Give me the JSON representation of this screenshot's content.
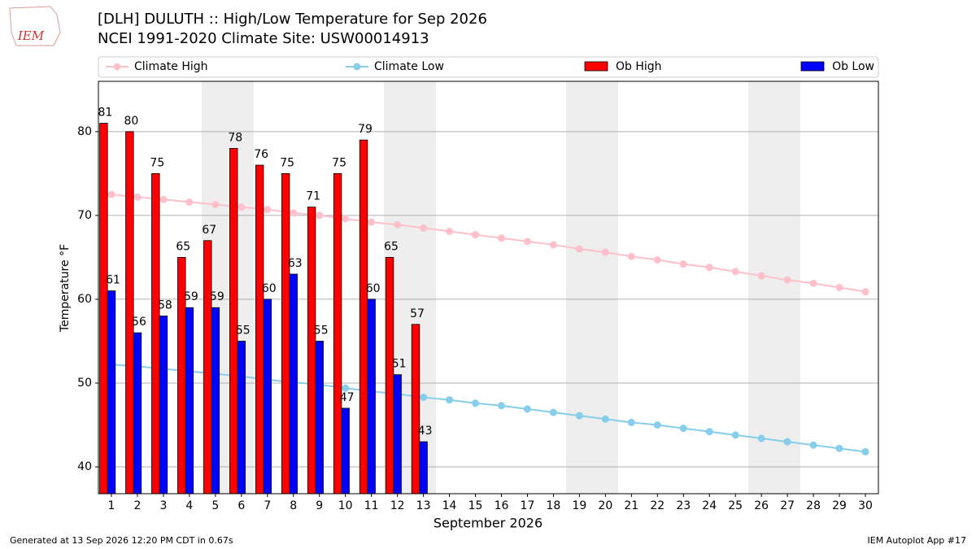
{
  "chart_data": {
    "type": "bar_line",
    "title": "[DLH] DULUTH :: High/Low Temperature for Sep 2026",
    "subtitle": "NCEI 1991-2020 Climate Site: USW00014913",
    "xlabel": "September 2026",
    "ylabel": "Temperature °F",
    "logo": "IEM",
    "footer_left": "Generated at 13 Sep 2026 12:20 PM CDT in 0.67s",
    "footer_right": "IEM Autoplot App #17",
    "x": [
      1,
      2,
      3,
      4,
      5,
      6,
      7,
      8,
      9,
      10,
      11,
      12,
      13,
      14,
      15,
      16,
      17,
      18,
      19,
      20,
      21,
      22,
      23,
      24,
      25,
      26,
      27,
      28,
      29,
      30
    ],
    "xlim": [
      0.5,
      30.5
    ],
    "xticks": [
      1,
      2,
      3,
      4,
      5,
      6,
      7,
      8,
      9,
      10,
      11,
      12,
      13,
      14,
      15,
      16,
      17,
      18,
      19,
      20,
      21,
      22,
      23,
      24,
      25,
      26,
      27,
      28,
      29,
      30
    ],
    "ylim": [
      36.8,
      86
    ],
    "yticks": [
      40,
      50,
      60,
      70,
      80
    ],
    "grid": true,
    "series": [
      {
        "name": "Climate High",
        "kind": "line",
        "color": "#ffc0cb",
        "values": [
          72.5,
          72.2,
          71.9,
          71.6,
          71.3,
          71.0,
          70.7,
          70.3,
          70.0,
          69.6,
          69.2,
          68.9,
          68.5,
          68.1,
          67.7,
          67.3,
          66.9,
          66.5,
          66.0,
          65.6,
          65.1,
          64.7,
          64.2,
          63.8,
          63.3,
          62.8,
          62.3,
          61.9,
          61.4,
          60.9
        ]
      },
      {
        "name": "Climate Low",
        "kind": "line",
        "color": "#87ceeb",
        "values": [
          52.2,
          52.0,
          51.7,
          51.4,
          51.1,
          50.8,
          50.4,
          50.1,
          49.8,
          49.4,
          49.0,
          48.7,
          48.3,
          48.0,
          47.6,
          47.3,
          46.9,
          46.5,
          46.1,
          45.7,
          45.3,
          45.0,
          44.6,
          44.2,
          43.8,
          43.4,
          43.0,
          42.6,
          42.2,
          41.8
        ]
      },
      {
        "name": "Ob High",
        "kind": "bar",
        "color": "#ff0000",
        "values": [
          81,
          80,
          75,
          65,
          67,
          78,
          76,
          75,
          71,
          75,
          79,
          65,
          57,
          null,
          null,
          null,
          null,
          null,
          null,
          null,
          null,
          null,
          null,
          null,
          null,
          null,
          null,
          null,
          null,
          null
        ]
      },
      {
        "name": "Ob Low",
        "kind": "bar",
        "color": "#0000ff",
        "values": [
          61,
          56,
          58,
          59,
          59,
          55,
          60,
          63,
          55,
          47,
          60,
          51,
          43,
          null,
          null,
          null,
          null,
          null,
          null,
          null,
          null,
          null,
          null,
          null,
          null,
          null,
          null,
          null,
          null,
          null
        ]
      }
    ]
  }
}
